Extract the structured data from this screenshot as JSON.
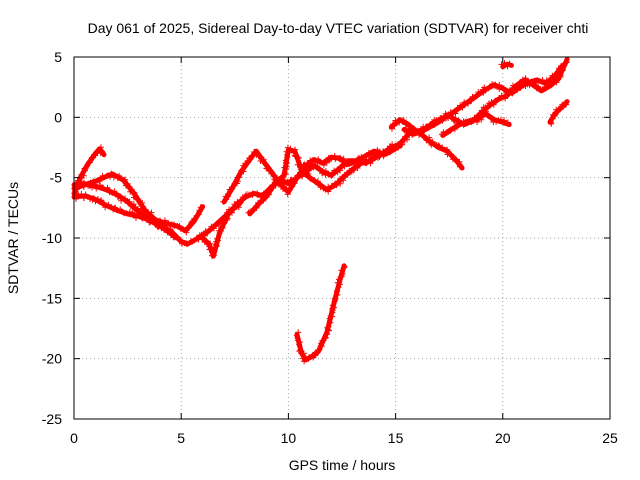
{
  "chart_data": {
    "type": "scatter",
    "title": "Day 061 of 2025, Sidereal Day-to-day VTEC variation (SDTVAR) for receiver chti",
    "xlabel": "GPS time / hours",
    "ylabel": "SDTVAR / TECUs",
    "xlim": [
      0,
      25
    ],
    "ylim": [
      -25,
      5
    ],
    "xticks": [
      0,
      5,
      10,
      15,
      20,
      25
    ],
    "yticks": [
      -25,
      -20,
      -15,
      -10,
      -5,
      0,
      5
    ],
    "grid": true,
    "marker": "+",
    "color": "#ff0000",
    "series": [
      {
        "name": "track-a",
        "x": [
          0,
          0.3,
          0.6,
          1.0,
          1.2,
          1.4
        ],
        "y": [
          -6.3,
          -5.0,
          -4.0,
          -3.0,
          -2.6,
          -3.1
        ]
      },
      {
        "name": "track-b",
        "x": [
          0,
          0.5,
          1.0,
          1.5,
          1.8,
          2.3,
          2.8,
          3.3,
          3.8,
          4.3,
          4.8,
          5.2,
          5.6,
          6.0
        ],
        "y": [
          -5.9,
          -5.6,
          -5.3,
          -4.9,
          -4.7,
          -5.2,
          -6.3,
          -7.7,
          -8.5,
          -8.8,
          -9.0,
          -9.4,
          -8.6,
          -7.4
        ]
      },
      {
        "name": "track-c",
        "x": [
          0,
          0.5,
          1.0,
          1.5,
          2.0,
          2.5,
          3.0,
          3.5,
          4.0,
          4.5,
          5.0,
          5.3,
          5.8,
          6.3,
          6.8,
          7.3,
          7.8
        ],
        "y": [
          -5.6,
          -5.5,
          -5.7,
          -6.0,
          -6.4,
          -7.0,
          -7.8,
          -8.5,
          -9.0,
          -9.4,
          -10.3,
          -10.5,
          -10.0,
          -9.4,
          -8.6,
          -7.8,
          -7.0
        ]
      },
      {
        "name": "track-d",
        "x": [
          0,
          0.5,
          1.0,
          1.5,
          2.0,
          2.5,
          3.0,
          3.5,
          4.0,
          4.5,
          4.8
        ],
        "y": [
          -6.6,
          -6.5,
          -6.8,
          -7.3,
          -7.7,
          -8.0,
          -8.2,
          -8.5,
          -9.0,
          -9.6,
          -10.0
        ]
      },
      {
        "name": "track-e",
        "x": [
          6.0,
          6.3,
          6.5,
          6.8,
          7.2,
          7.6,
          8.0,
          8.4,
          8.8,
          9.2,
          9.6,
          10.0,
          10.4,
          10.8,
          11.2,
          11.6,
          12.0,
          12.4,
          12.8,
          13.2,
          13.6,
          14.0,
          14.4,
          14.8,
          15.2
        ],
        "y": [
          -10.0,
          -10.5,
          -11.5,
          -9.5,
          -8.0,
          -7.2,
          -6.6,
          -6.3,
          -6.5,
          -5.8,
          -5.2,
          -5.5,
          -5.0,
          -4.5,
          -4.0,
          -4.5,
          -4.8,
          -4.2,
          -3.6,
          -3.6,
          -3.8,
          -3.4,
          -3.0,
          -2.5,
          -2.2
        ]
      },
      {
        "name": "track-f",
        "x": [
          7.0,
          7.4,
          7.8,
          8.2,
          8.5,
          8.9,
          9.2,
          9.6,
          10.0,
          10.4,
          10.8,
          11.2,
          11.6,
          12.0,
          12.4,
          12.8,
          13.2,
          13.6,
          14.0,
          14.4,
          14.8,
          15.2
        ],
        "y": [
          -7.0,
          -5.8,
          -4.5,
          -3.5,
          -2.8,
          -3.8,
          -4.5,
          -5.5,
          -6.2,
          -5.0,
          -4.0,
          -3.5,
          -3.8,
          -3.3,
          -3.4,
          -3.9,
          -3.6,
          -3.2,
          -2.8,
          -3.0,
          -2.5,
          -2.4
        ]
      },
      {
        "name": "track-g",
        "x": [
          8.2,
          8.6,
          9.0,
          9.4,
          9.8,
          10.0,
          10.3,
          10.6,
          11.0,
          11.4,
          11.8,
          12.2,
          12.6,
          13.0,
          13.4,
          13.8,
          14.2,
          14.6,
          15.0
        ],
        "y": [
          -8.0,
          -7.2,
          -6.5,
          -5.4,
          -4.8,
          -2.7,
          -2.8,
          -4.3,
          -5.0,
          -5.5,
          -6.0,
          -5.6,
          -4.9,
          -4.3,
          -3.8,
          -3.6,
          -3.1,
          -3.0,
          -2.6
        ]
      },
      {
        "name": "track-h",
        "x": [
          10.4,
          10.6,
          10.8,
          11.1,
          11.4,
          11.8,
          12.1,
          12.4,
          12.6
        ],
        "y": [
          -18.0,
          -19.5,
          -20.1,
          -19.8,
          -19.4,
          -17.8,
          -15.6,
          -13.5,
          -12.3
        ]
      },
      {
        "name": "track-i",
        "x": [
          14.8,
          15.2,
          15.6,
          16.0,
          16.4,
          16.8,
          17.2,
          17.6,
          18.0,
          18.4,
          18.8,
          19.2,
          19.6,
          20.0,
          20.4,
          20.8,
          21.2,
          21.6,
          22.0,
          22.4,
          22.8
        ],
        "y": [
          -0.8,
          -0.2,
          -0.6,
          -1.2,
          -0.9,
          -0.4,
          -0.1,
          0.3,
          0.8,
          1.3,
          1.8,
          2.3,
          2.7,
          2.4,
          2.0,
          2.5,
          2.9,
          3.1,
          2.8,
          3.4,
          4.3
        ]
      },
      {
        "name": "track-j",
        "x": [
          15.4,
          15.8,
          16.2,
          16.6,
          17.0,
          17.4,
          17.8,
          18.2,
          18.6,
          19.0,
          19.4,
          19.8,
          20.2,
          20.6,
          21.0,
          21.4,
          21.8,
          22.2,
          22.6,
          23.0
        ],
        "y": [
          -1.0,
          -1.4,
          -1.2,
          -0.8,
          -0.4,
          0.2,
          -0.2,
          -0.6,
          -0.3,
          0.4,
          1.0,
          1.5,
          1.8,
          2.6,
          3.1,
          2.7,
          2.2,
          2.6,
          3.2,
          4.8
        ]
      },
      {
        "name": "track-k",
        "x": [
          15.0,
          15.4,
          15.8,
          16.2,
          16.6,
          17.0,
          17.4,
          17.8,
          18.1
        ],
        "y": [
          -2.6,
          -1.8,
          -1.0,
          -1.4,
          -2.0,
          -2.5,
          -2.8,
          -3.5,
          -4.2
        ]
      },
      {
        "name": "track-l",
        "x": [
          17.2,
          17.6,
          18.0,
          18.4,
          18.8,
          19.2,
          19.6,
          20.0,
          20.3
        ],
        "y": [
          -1.5,
          -1.0,
          -0.6,
          -0.3,
          -0.2,
          0.3,
          -0.2,
          -0.4,
          -0.6
        ]
      },
      {
        "name": "track-m",
        "x": [
          20.0,
          20.2,
          20.4
        ],
        "y": [
          4.2,
          4.4,
          4.3
        ]
      },
      {
        "name": "track-n",
        "x": [
          22.2,
          22.4,
          22.6,
          22.8,
          23.0
        ],
        "y": [
          -0.4,
          0.2,
          0.6,
          0.9,
          1.3
        ]
      }
    ]
  }
}
